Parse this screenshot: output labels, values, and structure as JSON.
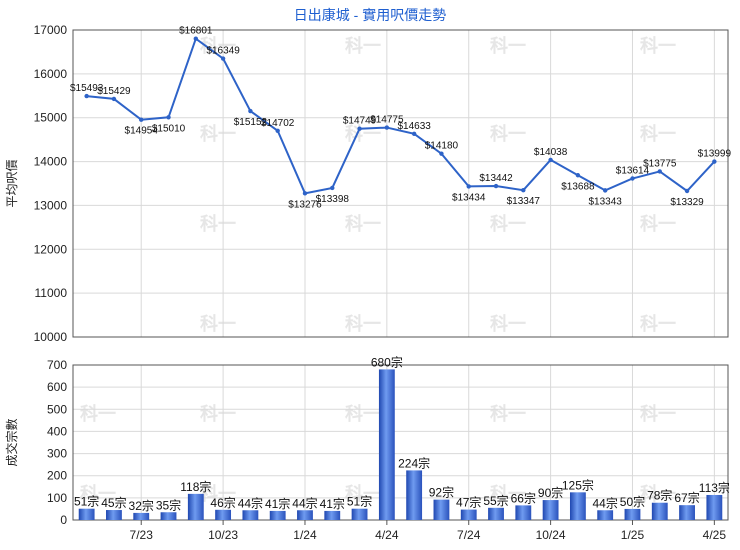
{
  "title": "日出康城 - 實用呎價走勢",
  "chart_data": [
    {
      "type": "line",
      "ylabel": "平均呎價",
      "ylim": [
        10000,
        17000
      ],
      "yticks": [
        10000,
        11000,
        12000,
        13000,
        14000,
        15000,
        16000,
        17000
      ],
      "series": [
        {
          "values": [
            15493,
            15429,
            14954,
            15010,
            16801,
            16349,
            15152,
            14702,
            13276,
            13398,
            14749,
            14775,
            14633,
            14180,
            13434,
            13442,
            13347,
            14038,
            13688,
            13343,
            13614,
            13775,
            13329,
            13999
          ],
          "labels": [
            "$15493",
            "$15429",
            "$14954",
            "$15010",
            "$16801",
            "$16349",
            "$15152",
            "$14702",
            "$13276",
            "$13398",
            "$14749",
            "$14775",
            "$14633",
            "$14180",
            "$13434",
            "$13442",
            "$13347",
            "$14038",
            "$13688",
            "$13343",
            "$13614",
            "$13775",
            "$13329",
            "$13999"
          ],
          "color": "#2e63c8"
        }
      ],
      "grid": true
    },
    {
      "type": "bar",
      "ylabel": "成交宗數",
      "ylim": [
        0,
        700
      ],
      "yticks": [
        0,
        100,
        200,
        300,
        400,
        500,
        600,
        700
      ],
      "values": [
        51,
        45,
        32,
        35,
        118,
        46,
        44,
        41,
        44,
        41,
        51,
        680,
        224,
        92,
        47,
        55,
        66,
        90,
        125,
        44,
        50,
        78,
        67,
        113
      ],
      "labels": [
        "51宗",
        "45宗",
        "32宗",
        "35宗",
        "118宗",
        "46宗",
        "44宗",
        "41宗",
        "44宗",
        "41宗",
        "51宗",
        "680宗",
        "224宗",
        "92宗",
        "47宗",
        "55宗",
        "66宗",
        "90宗",
        "125宗",
        "44宗",
        "50宗",
        "78宗",
        "67宗",
        "113宗"
      ],
      "xticks": [
        "7/23",
        "10/23",
        "1/24",
        "4/24",
        "7/24",
        "10/24",
        "1/25",
        "4/25"
      ],
      "color": "#3b6fd6",
      "grid": true
    }
  ],
  "watermark": "科一"
}
